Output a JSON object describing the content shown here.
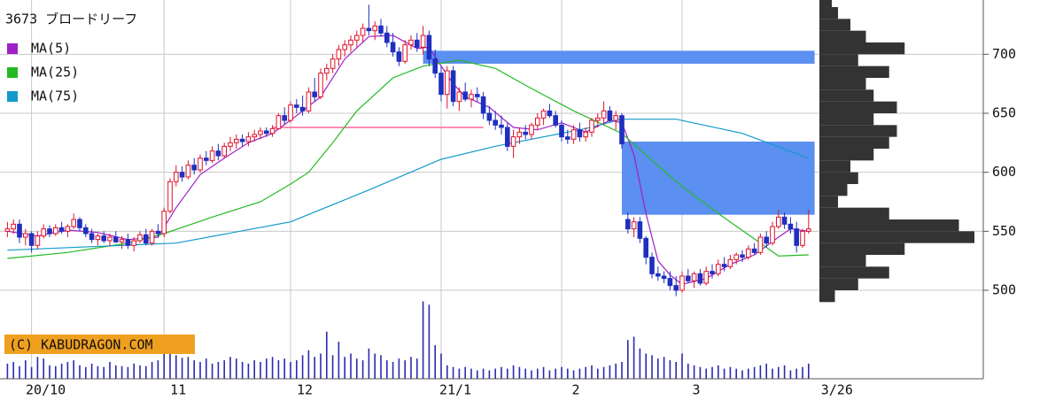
{
  "chart_data": {
    "type": "candlestick",
    "title": "3673 ブロードリーフ",
    "categories": [
      null,
      null,
      null,
      null,
      "20/10",
      null,
      null,
      null,
      null,
      null,
      null,
      null,
      null,
      null,
      null,
      null,
      null,
      null,
      null,
      null,
      null,
      null,
      null,
      null,
      null,
      null,
      "11",
      null,
      null,
      null,
      null,
      null,
      null,
      null,
      null,
      null,
      null,
      null,
      null,
      null,
      null,
      null,
      null,
      null,
      null,
      null,
      null,
      "12",
      null,
      null,
      null,
      null,
      null,
      null,
      null,
      null,
      null,
      null,
      null,
      null,
      null,
      null,
      null,
      null,
      null,
      null,
      null,
      null,
      null,
      null,
      null,
      null,
      "21/1",
      null,
      null,
      null,
      null,
      null,
      null,
      null,
      null,
      null,
      null,
      null,
      null,
      null,
      null,
      null,
      null,
      null,
      null,
      null,
      "2",
      null,
      null,
      null,
      null,
      null,
      null,
      null,
      null,
      null,
      null,
      null,
      null,
      null,
      null,
      null,
      null,
      null,
      null,
      null,
      "3",
      null,
      null,
      null,
      null,
      null,
      null,
      null,
      null,
      null,
      null,
      null,
      null,
      null,
      null,
      null,
      null,
      null,
      null,
      null,
      null,
      null
    ],
    "last_date_label": "3/26",
    "ohlc": [
      [
        550,
        558,
        545,
        552
      ],
      [
        552,
        560,
        548,
        556
      ],
      [
        556,
        560,
        540,
        545
      ],
      [
        545,
        552,
        538,
        548
      ],
      [
        548,
        550,
        532,
        538
      ],
      [
        538,
        550,
        535,
        546
      ],
      [
        546,
        556,
        544,
        552
      ],
      [
        552,
        555,
        545,
        548
      ],
      [
        548,
        556,
        546,
        553
      ],
      [
        553,
        558,
        548,
        550
      ],
      [
        550,
        556,
        545,
        554
      ],
      [
        554,
        565,
        552,
        560
      ],
      [
        560,
        562,
        550,
        553
      ],
      [
        553,
        556,
        545,
        548
      ],
      [
        548,
        552,
        540,
        543
      ],
      [
        543,
        548,
        538,
        546
      ],
      [
        546,
        550,
        540,
        542
      ],
      [
        542,
        548,
        537,
        545
      ],
      [
        545,
        550,
        540,
        541
      ],
      [
        541,
        546,
        535,
        543
      ],
      [
        543,
        548,
        535,
        538
      ],
      [
        538,
        545,
        533,
        542
      ],
      [
        542,
        550,
        540,
        547
      ],
      [
        547,
        552,
        538,
        540
      ],
      [
        540,
        552,
        538,
        550
      ],
      [
        550,
        556,
        545,
        548
      ],
      [
        548,
        570,
        545,
        567
      ],
      [
        567,
        595,
        565,
        592
      ],
      [
        592,
        606,
        588,
        600
      ],
      [
        600,
        605,
        592,
        596
      ],
      [
        596,
        610,
        594,
        606
      ],
      [
        606,
        612,
        598,
        602
      ],
      [
        602,
        615,
        600,
        612
      ],
      [
        612,
        618,
        606,
        610
      ],
      [
        610,
        622,
        608,
        618
      ],
      [
        618,
        624,
        610,
        614
      ],
      [
        614,
        625,
        612,
        622
      ],
      [
        622,
        630,
        618,
        625
      ],
      [
        625,
        632,
        620,
        628
      ],
      [
        628,
        632,
        622,
        626
      ],
      [
        626,
        634,
        622,
        630
      ],
      [
        630,
        636,
        626,
        632
      ],
      [
        632,
        638,
        628,
        635
      ],
      [
        635,
        638,
        630,
        633
      ],
      [
        633,
        640,
        630,
        637
      ],
      [
        637,
        650,
        636,
        648
      ],
      [
        648,
        655,
        640,
        644
      ],
      [
        644,
        660,
        642,
        657
      ],
      [
        657,
        662,
        650,
        655
      ],
      [
        655,
        665,
        648,
        652
      ],
      [
        652,
        672,
        650,
        668
      ],
      [
        668,
        680,
        660,
        664
      ],
      [
        664,
        688,
        662,
        684
      ],
      [
        684,
        692,
        678,
        688
      ],
      [
        688,
        700,
        684,
        696
      ],
      [
        696,
        708,
        690,
        704
      ],
      [
        704,
        712,
        698,
        708
      ],
      [
        708,
        716,
        702,
        712
      ],
      [
        712,
        720,
        706,
        716
      ],
      [
        716,
        726,
        710,
        722
      ],
      [
        722,
        742,
        716,
        720
      ],
      [
        720,
        728,
        712,
        724
      ],
      [
        724,
        730,
        715,
        718
      ],
      [
        718,
        724,
        706,
        710
      ],
      [
        710,
        718,
        698,
        702
      ],
      [
        702,
        706,
        690,
        694
      ],
      [
        694,
        712,
        692,
        708
      ],
      [
        708,
        716,
        704,
        712
      ],
      [
        712,
        718,
        702,
        706
      ],
      [
        706,
        724,
        700,
        716
      ],
      [
        716,
        720,
        690,
        696
      ],
      [
        696,
        704,
        680,
        684
      ],
      [
        684,
        690,
        660,
        666
      ],
      [
        666,
        690,
        654,
        686
      ],
      [
        686,
        690,
        656,
        660
      ],
      [
        660,
        672,
        652,
        668
      ],
      [
        668,
        676,
        660,
        662
      ],
      [
        662,
        670,
        655,
        666
      ],
      [
        666,
        672,
        660,
        664
      ],
      [
        664,
        668,
        645,
        650
      ],
      [
        650,
        656,
        640,
        644
      ],
      [
        644,
        652,
        636,
        640
      ],
      [
        640,
        648,
        632,
        638
      ],
      [
        638,
        642,
        618,
        622
      ],
      [
        622,
        636,
        612,
        630
      ],
      [
        630,
        638,
        624,
        634
      ],
      [
        634,
        640,
        628,
        632
      ],
      [
        632,
        642,
        628,
        640
      ],
      [
        640,
        650,
        636,
        646
      ],
      [
        646,
        654,
        640,
        652
      ],
      [
        652,
        658,
        646,
        648
      ],
      [
        648,
        652,
        638,
        640
      ],
      [
        640,
        644,
        626,
        630
      ],
      [
        630,
        636,
        624,
        628
      ],
      [
        628,
        640,
        624,
        636
      ],
      [
        636,
        642,
        626,
        630
      ],
      [
        630,
        638,
        626,
        634
      ],
      [
        634,
        646,
        630,
        644
      ],
      [
        644,
        650,
        638,
        646
      ],
      [
        646,
        660,
        640,
        652
      ],
      [
        652,
        656,
        642,
        644
      ],
      [
        644,
        652,
        636,
        648
      ],
      [
        648,
        650,
        620,
        624
      ],
      [
        560,
        566,
        548,
        552
      ],
      [
        552,
        562,
        545,
        558
      ],
      [
        558,
        562,
        540,
        544
      ],
      [
        544,
        546,
        522,
        528
      ],
      [
        528,
        532,
        510,
        514
      ],
      [
        514,
        520,
        508,
        512
      ],
      [
        512,
        516,
        506,
        510
      ],
      [
        510,
        516,
        500,
        504
      ],
      [
        504,
        512,
        495,
        500
      ],
      [
        500,
        516,
        498,
        512
      ],
      [
        512,
        518,
        506,
        508
      ],
      [
        508,
        516,
        502,
        514
      ],
      [
        514,
        518,
        504,
        506
      ],
      [
        506,
        520,
        504,
        516
      ],
      [
        516,
        522,
        510,
        514
      ],
      [
        514,
        526,
        512,
        522
      ],
      [
        522,
        528,
        516,
        520
      ],
      [
        520,
        530,
        518,
        526
      ],
      [
        526,
        532,
        522,
        530
      ],
      [
        530,
        534,
        524,
        528
      ],
      [
        528,
        538,
        526,
        535
      ],
      [
        535,
        540,
        530,
        532
      ],
      [
        532,
        548,
        530,
        545
      ],
      [
        545,
        550,
        536,
        540
      ],
      [
        540,
        558,
        538,
        554
      ],
      [
        554,
        568,
        552,
        562
      ],
      [
        562,
        566,
        552,
        556
      ],
      [
        556,
        562,
        548,
        552
      ],
      [
        552,
        558,
        532,
        538
      ],
      [
        538,
        552,
        536,
        550
      ],
      [
        550,
        568,
        548,
        552
      ]
    ],
    "up_color": "#e0102a",
    "down_color": "#1f2fc0",
    "ylim": [
      425,
      746
    ],
    "yticks": [
      500,
      550,
      600,
      650,
      700
    ],
    "grid": true,
    "ma": [
      {
        "name": "MA(5)",
        "color": "#a020c8",
        "x": [
          0,
          5,
          10,
          15,
          20,
          25,
          28,
          32,
          36,
          40,
          44,
          48,
          52,
          56,
          60,
          64,
          68,
          70,
          72,
          74,
          76,
          80,
          84,
          88,
          92,
          96,
          100,
          102,
          104,
          106,
          108,
          110,
          112,
          116,
          120,
          124,
          128,
          130,
          133
        ],
        "values": [
          550,
          546,
          551,
          549,
          543,
          545,
          570,
          598,
          612,
          625,
          633,
          648,
          664,
          696,
          715,
          716,
          705,
          706,
          690,
          675,
          664,
          655,
          638,
          636,
          642,
          634,
          644,
          642,
          615,
          565,
          525,
          513,
          505,
          510,
          522,
          530,
          545,
          552,
          550
        ]
      },
      {
        "name": "MA(25)",
        "color": "#22bb22",
        "x": [
          0,
          10,
          20,
          26,
          34,
          42,
          47,
          50,
          54,
          58,
          64,
          69,
          75,
          81,
          87,
          94,
          102,
          107,
          112,
          118,
          125,
          128,
          133
        ],
        "values": [
          527,
          532,
          540,
          548,
          562,
          575,
          590,
          600,
          625,
          652,
          680,
          690,
          695,
          688,
          671,
          652,
          633,
          610,
          588,
          565,
          540,
          529,
          530
        ]
      },
      {
        "name": "MA(75)",
        "color": "#1199cc",
        "x": [
          0,
          28,
          47,
          60,
          72,
          81,
          96,
          102,
          111,
          122,
          133
        ],
        "values": [
          534,
          540,
          558,
          585,
          611,
          622,
          637,
          645,
          645,
          633,
          612
        ]
      }
    ],
    "zones": [
      {
        "from": 69,
        "to": 133,
        "low": 692,
        "high": 703
      },
      {
        "from": 102,
        "to": 133,
        "low": 564,
        "high": 626
      }
    ],
    "zone_color": "#5b8ff0",
    "level": {
      "from": 44,
      "to": 79,
      "value": 638,
      "color": "#ff6699"
    },
    "volume": {
      "color": "#2a2ab0",
      "ylim": [
        0,
        100
      ],
      "values": [
        18,
        20,
        15,
        22,
        14,
        26,
        24,
        16,
        15,
        18,
        20,
        22,
        16,
        14,
        18,
        15,
        14,
        20,
        16,
        15,
        14,
        18,
        16,
        15,
        20,
        22,
        32,
        30,
        28,
        25,
        26,
        22,
        20,
        24,
        18,
        20,
        22,
        26,
        24,
        20,
        18,
        22,
        20,
        24,
        26,
        22,
        24,
        20,
        22,
        28,
        34,
        26,
        30,
        56,
        28,
        44,
        26,
        30,
        24,
        22,
        36,
        30,
        28,
        22,
        20,
        24,
        22,
        26,
        24,
        92,
        88,
        40,
        30,
        16,
        14,
        12,
        14,
        12,
        10,
        12,
        10,
        12,
        14,
        12,
        16,
        14,
        12,
        10,
        12,
        14,
        10,
        12,
        14,
        12,
        10,
        12,
        14,
        16,
        12,
        14,
        16,
        18,
        20,
        46,
        50,
        36,
        30,
        28,
        24,
        26,
        22,
        20,
        30,
        18,
        16,
        14,
        12,
        14,
        16,
        12,
        14,
        12,
        10,
        12,
        14,
        16,
        18,
        12,
        14,
        16,
        10,
        12,
        14,
        18
      ]
    },
    "profile": {
      "color": "#333333",
      "xlim": [
        0,
        100
      ],
      "bins": [
        490,
        500,
        510,
        520,
        530,
        540,
        550,
        560,
        570,
        580,
        590,
        600,
        610,
        620,
        630,
        640,
        650,
        660,
        670,
        680,
        690,
        700,
        710,
        720,
        730,
        740,
        750
      ],
      "values": [
        10,
        25,
        45,
        30,
        55,
        100,
        90,
        45,
        12,
        18,
        25,
        20,
        35,
        45,
        50,
        35,
        50,
        35,
        30,
        45,
        25,
        55,
        30,
        20,
        12,
        8
      ]
    },
    "watermark": "(C) KABUDRAGON.COM"
  }
}
